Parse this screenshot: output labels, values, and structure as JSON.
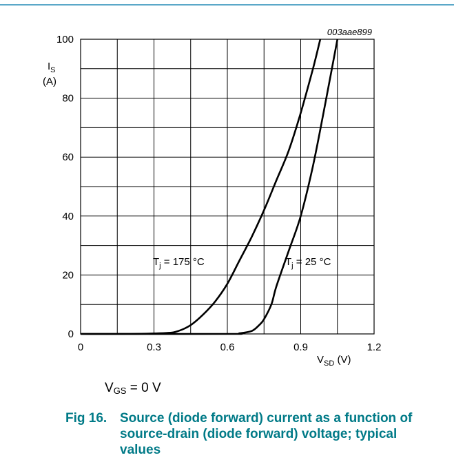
{
  "theme": {
    "accent": "#007a87",
    "rule": "#5aa8c8",
    "ink": "#000000"
  },
  "figure_code": "003aae899",
  "condition": {
    "base": "V",
    "sub": "GS",
    "rest": " = 0 V"
  },
  "caption": {
    "number": "Fig 16.",
    "text": "Source (diode forward) current as a function of source-drain (diode forward) voltage; typical values"
  },
  "chart_data": {
    "type": "line",
    "xlabel": {
      "base": "V",
      "sub": "SD",
      "unit": " (V)"
    },
    "ylabel": {
      "base": "I",
      "sub": "S",
      "unit": "(A)"
    },
    "xlim": [
      0,
      1.2
    ],
    "ylim": [
      0,
      100
    ],
    "x_major_ticks": [
      0,
      0.3,
      0.6,
      0.9,
      1.2
    ],
    "x_tick_labels": [
      "0",
      "0.3",
      "0.6",
      "0.9",
      "1.2"
    ],
    "y_major_ticks": [
      0,
      20,
      40,
      60,
      80,
      100
    ],
    "y_tick_labels": [
      "0",
      "20",
      "40",
      "60",
      "80",
      "100"
    ],
    "grid": {
      "x_step": 0.15,
      "y_step": 10
    },
    "series": [
      {
        "name": "Tj = 175 °C",
        "label": {
          "base": "T",
          "sub": "j",
          "rest": " = 175 °C"
        },
        "x": [
          0.0,
          0.2,
          0.35,
          0.4,
          0.45,
          0.5,
          0.55,
          0.6,
          0.65,
          0.7,
          0.75,
          0.8,
          0.85,
          0.9,
          0.95,
          0.98
        ],
        "y": [
          0.0,
          0.0,
          0.3,
          1.0,
          3.0,
          6.5,
          11.0,
          17.0,
          25.0,
          33.0,
          42.0,
          52.0,
          62.0,
          75.0,
          90.0,
          100.0
        ]
      },
      {
        "name": "Tj = 25 °C",
        "label": {
          "base": "T",
          "sub": "j",
          "rest": " = 25 °C"
        },
        "x": [
          0.0,
          0.6,
          0.65,
          0.7,
          0.73,
          0.75,
          0.78,
          0.8,
          0.85,
          0.9,
          0.95,
          1.0,
          1.05
        ],
        "y": [
          0.0,
          0.0,
          0.2,
          1.0,
          3.0,
          5.0,
          10.0,
          16.0,
          28.0,
          40.0,
          57.0,
          78.0,
          100.0
        ]
      }
    ]
  }
}
